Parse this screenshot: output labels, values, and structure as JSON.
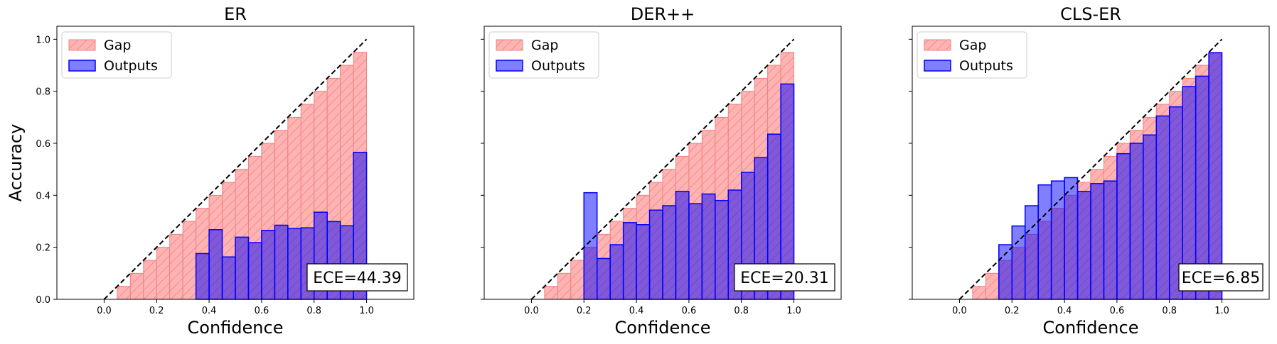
{
  "chart_data": [
    {
      "type": "bar",
      "title": "ER",
      "xlabel": "Confidence",
      "ylabel": "Accuracy",
      "xlim": [
        -0.18,
        1.18
      ],
      "ylim": [
        0,
        1.05
      ],
      "xticks": [
        "0.0",
        "0.2",
        "0.4",
        "0.6",
        "0.8",
        "1.0"
      ],
      "yticks": [
        "0.0",
        "0.2",
        "0.4",
        "0.6",
        "0.8",
        "1.0"
      ],
      "bin_width": 0.05,
      "bin_centers": [
        0.025,
        0.075,
        0.125,
        0.175,
        0.225,
        0.275,
        0.325,
        0.375,
        0.425,
        0.475,
        0.525,
        0.575,
        0.625,
        0.675,
        0.725,
        0.775,
        0.825,
        0.875,
        0.925,
        0.975
      ],
      "series": [
        {
          "name": "Gap",
          "values": [
            0.0,
            0.05,
            0.1,
            0.15,
            0.2,
            0.25,
            0.3,
            0.35,
            0.4,
            0.45,
            0.5,
            0.55,
            0.6,
            0.65,
            0.7,
            0.75,
            0.8,
            0.85,
            0.9,
            0.95
          ]
        },
        {
          "name": "Outputs",
          "values": [
            0.0,
            0.0,
            0.0,
            0.0,
            0.0,
            0.0,
            0.0,
            0.176,
            0.268,
            0.163,
            0.239,
            0.218,
            0.265,
            0.285,
            0.272,
            0.275,
            0.335,
            0.299,
            0.283,
            0.565
          ]
        }
      ],
      "legend": {
        "position": "top-left",
        "entries": [
          "Gap",
          "Outputs"
        ]
      },
      "annotation": "ECE=44.39",
      "grid": false,
      "show_yticklabels": true
    },
    {
      "type": "bar",
      "title": "DER++",
      "xlabel": "Confidence",
      "ylabel": "",
      "xlim": [
        -0.18,
        1.18
      ],
      "ylim": [
        0,
        1.05
      ],
      "xticks": [
        "0.0",
        "0.2",
        "0.4",
        "0.6",
        "0.8",
        "1.0"
      ],
      "yticks": [
        "0.0",
        "0.2",
        "0.4",
        "0.6",
        "0.8",
        "1.0"
      ],
      "bin_width": 0.05,
      "bin_centers": [
        0.025,
        0.075,
        0.125,
        0.175,
        0.225,
        0.275,
        0.325,
        0.375,
        0.425,
        0.475,
        0.525,
        0.575,
        0.625,
        0.675,
        0.725,
        0.775,
        0.825,
        0.875,
        0.925,
        0.975
      ],
      "series": [
        {
          "name": "Gap",
          "values": [
            0.0,
            0.05,
            0.1,
            0.15,
            0.2,
            0.25,
            0.3,
            0.35,
            0.4,
            0.45,
            0.5,
            0.55,
            0.6,
            0.65,
            0.7,
            0.75,
            0.8,
            0.85,
            0.9,
            0.95
          ]
        },
        {
          "name": "Outputs",
          "values": [
            0.0,
            0.0,
            0.0,
            0.0,
            0.41,
            0.157,
            0.21,
            0.295,
            0.287,
            0.343,
            0.36,
            0.415,
            0.368,
            0.405,
            0.38,
            0.42,
            0.488,
            0.545,
            0.635,
            0.828
          ]
        }
      ],
      "legend": {
        "position": "top-left",
        "entries": [
          "Gap",
          "Outputs"
        ]
      },
      "annotation": "ECE=20.31",
      "grid": false,
      "show_yticklabels": false
    },
    {
      "type": "bar",
      "title": "CLS-ER",
      "xlabel": "Confidence",
      "ylabel": "",
      "xlim": [
        -0.18,
        1.18
      ],
      "ylim": [
        0,
        1.05
      ],
      "xticks": [
        "0.0",
        "0.2",
        "0.4",
        "0.6",
        "0.8",
        "1.0"
      ],
      "yticks": [
        "0.0",
        "0.2",
        "0.4",
        "0.6",
        "0.8",
        "1.0"
      ],
      "bin_width": 0.05,
      "bin_centers": [
        0.025,
        0.075,
        0.125,
        0.175,
        0.225,
        0.275,
        0.325,
        0.375,
        0.425,
        0.475,
        0.525,
        0.575,
        0.625,
        0.675,
        0.725,
        0.775,
        0.825,
        0.875,
        0.925,
        0.975
      ],
      "series": [
        {
          "name": "Gap",
          "values": [
            0.0,
            0.05,
            0.1,
            0.15,
            0.2,
            0.25,
            0.3,
            0.35,
            0.4,
            0.45,
            0.5,
            0.55,
            0.6,
            0.65,
            0.7,
            0.75,
            0.8,
            0.85,
            0.9,
            0.95
          ]
        },
        {
          "name": "Outputs",
          "values": [
            0.0,
            0.0,
            0.0,
            0.21,
            0.282,
            0.36,
            0.44,
            0.455,
            0.468,
            0.415,
            0.445,
            0.455,
            0.56,
            0.6,
            0.632,
            0.705,
            0.74,
            0.818,
            0.858,
            0.948
          ]
        }
      ],
      "legend": {
        "position": "top-left",
        "entries": [
          "Gap",
          "Outputs"
        ]
      },
      "annotation": "ECE=6.85",
      "grid": false,
      "show_yticklabels": false
    }
  ],
  "colors": {
    "gap_fill": "#ffb3b3",
    "gap_edge": "#f08080",
    "output_fill": "rgba(0,0,255,0.5)",
    "output_edge": "#0000ff",
    "diagonal": "#000000"
  }
}
